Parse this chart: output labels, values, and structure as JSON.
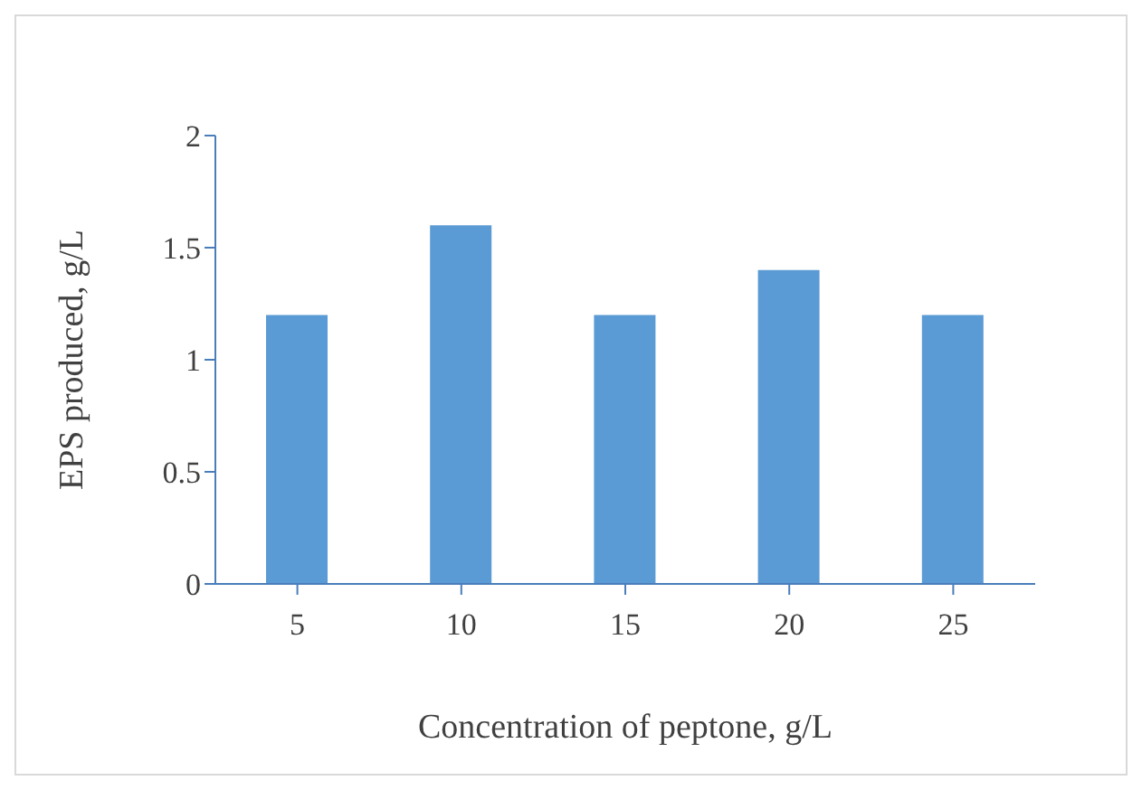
{
  "chart_data": {
    "type": "bar",
    "xlabel": "Concentration of peptone, g/L",
    "ylabel": "EPS produced, g/L",
    "categories": [
      "5",
      "10",
      "15",
      "20",
      "25"
    ],
    "values": [
      1.2,
      1.6,
      1.2,
      1.4,
      1.2
    ],
    "color": "#5b9bd5",
    "ylim": [
      0,
      2
    ],
    "yticks": [
      0,
      0.5,
      1,
      1.5,
      2
    ],
    "grid": false
  }
}
